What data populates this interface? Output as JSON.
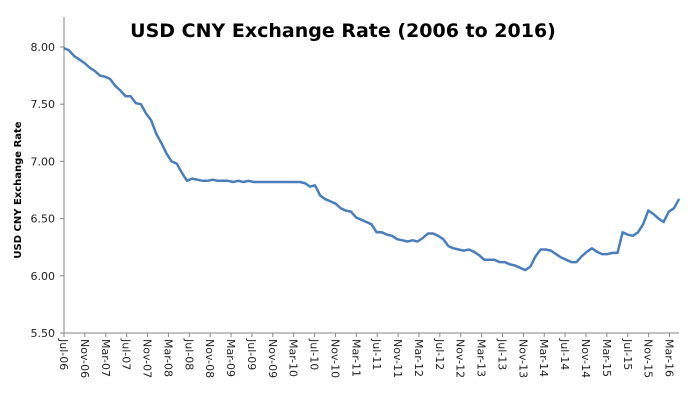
{
  "chart_data": {
    "type": "line",
    "title": "USD CNY Exchange Rate (2006 to 2016)",
    "xlabel": "",
    "ylabel": "USD CNY Exchange Rate",
    "ylim": [
      5.5,
      8.0
    ],
    "yticks": [
      "5.50",
      "6.00",
      "6.50",
      "7.00",
      "7.50",
      "8.00"
    ],
    "grid": false,
    "line_color": "#4a7ebb",
    "xtick_labels": [
      "Jul-06",
      "Nov-06",
      "Mar-07",
      "Jul-07",
      "Nov-07",
      "Mar-08",
      "Jul-08",
      "Nov-08",
      "Mar-09",
      "Jul-09",
      "Nov-09",
      "Mar-10",
      "Jul-10",
      "Nov-10",
      "Mar-11",
      "Jul-11",
      "Nov-11",
      "Mar-12",
      "Jul-12",
      "Nov-12",
      "Mar-13",
      "Jul-13",
      "Nov-13",
      "Mar-14",
      "Jul-14",
      "Nov-14",
      "Mar-15",
      "Jul-15",
      "Nov-15",
      "Mar-16"
    ],
    "x_start": "Jul-06",
    "x_interval": "monthly",
    "values": [
      7.99,
      7.97,
      7.92,
      7.89,
      7.86,
      7.82,
      7.79,
      7.75,
      7.74,
      7.72,
      7.66,
      7.62,
      7.57,
      7.57,
      7.51,
      7.5,
      7.42,
      7.36,
      7.24,
      7.16,
      7.07,
      7.0,
      6.98,
      6.9,
      6.83,
      6.85,
      6.84,
      6.83,
      6.83,
      6.84,
      6.83,
      6.83,
      6.83,
      6.82,
      6.83,
      6.82,
      6.83,
      6.82,
      6.82,
      6.82,
      6.82,
      6.82,
      6.82,
      6.82,
      6.82,
      6.82,
      6.82,
      6.81,
      6.78,
      6.79,
      6.7,
      6.67,
      6.65,
      6.63,
      6.59,
      6.57,
      6.56,
      6.51,
      6.49,
      6.47,
      6.45,
      6.38,
      6.38,
      6.36,
      6.35,
      6.32,
      6.31,
      6.3,
      6.31,
      6.3,
      6.33,
      6.37,
      6.37,
      6.35,
      6.32,
      6.26,
      6.24,
      6.23,
      6.22,
      6.23,
      6.21,
      6.18,
      6.14,
      6.14,
      6.14,
      6.12,
      6.12,
      6.1,
      6.09,
      6.07,
      6.05,
      6.08,
      6.17,
      6.23,
      6.23,
      6.22,
      6.19,
      6.16,
      6.14,
      6.12,
      6.12,
      6.17,
      6.21,
      6.24,
      6.21,
      6.19,
      6.19,
      6.2,
      6.2,
      6.38,
      6.36,
      6.35,
      6.38,
      6.45,
      6.57,
      6.54,
      6.5,
      6.47,
      6.56,
      6.59,
      6.67
    ]
  }
}
